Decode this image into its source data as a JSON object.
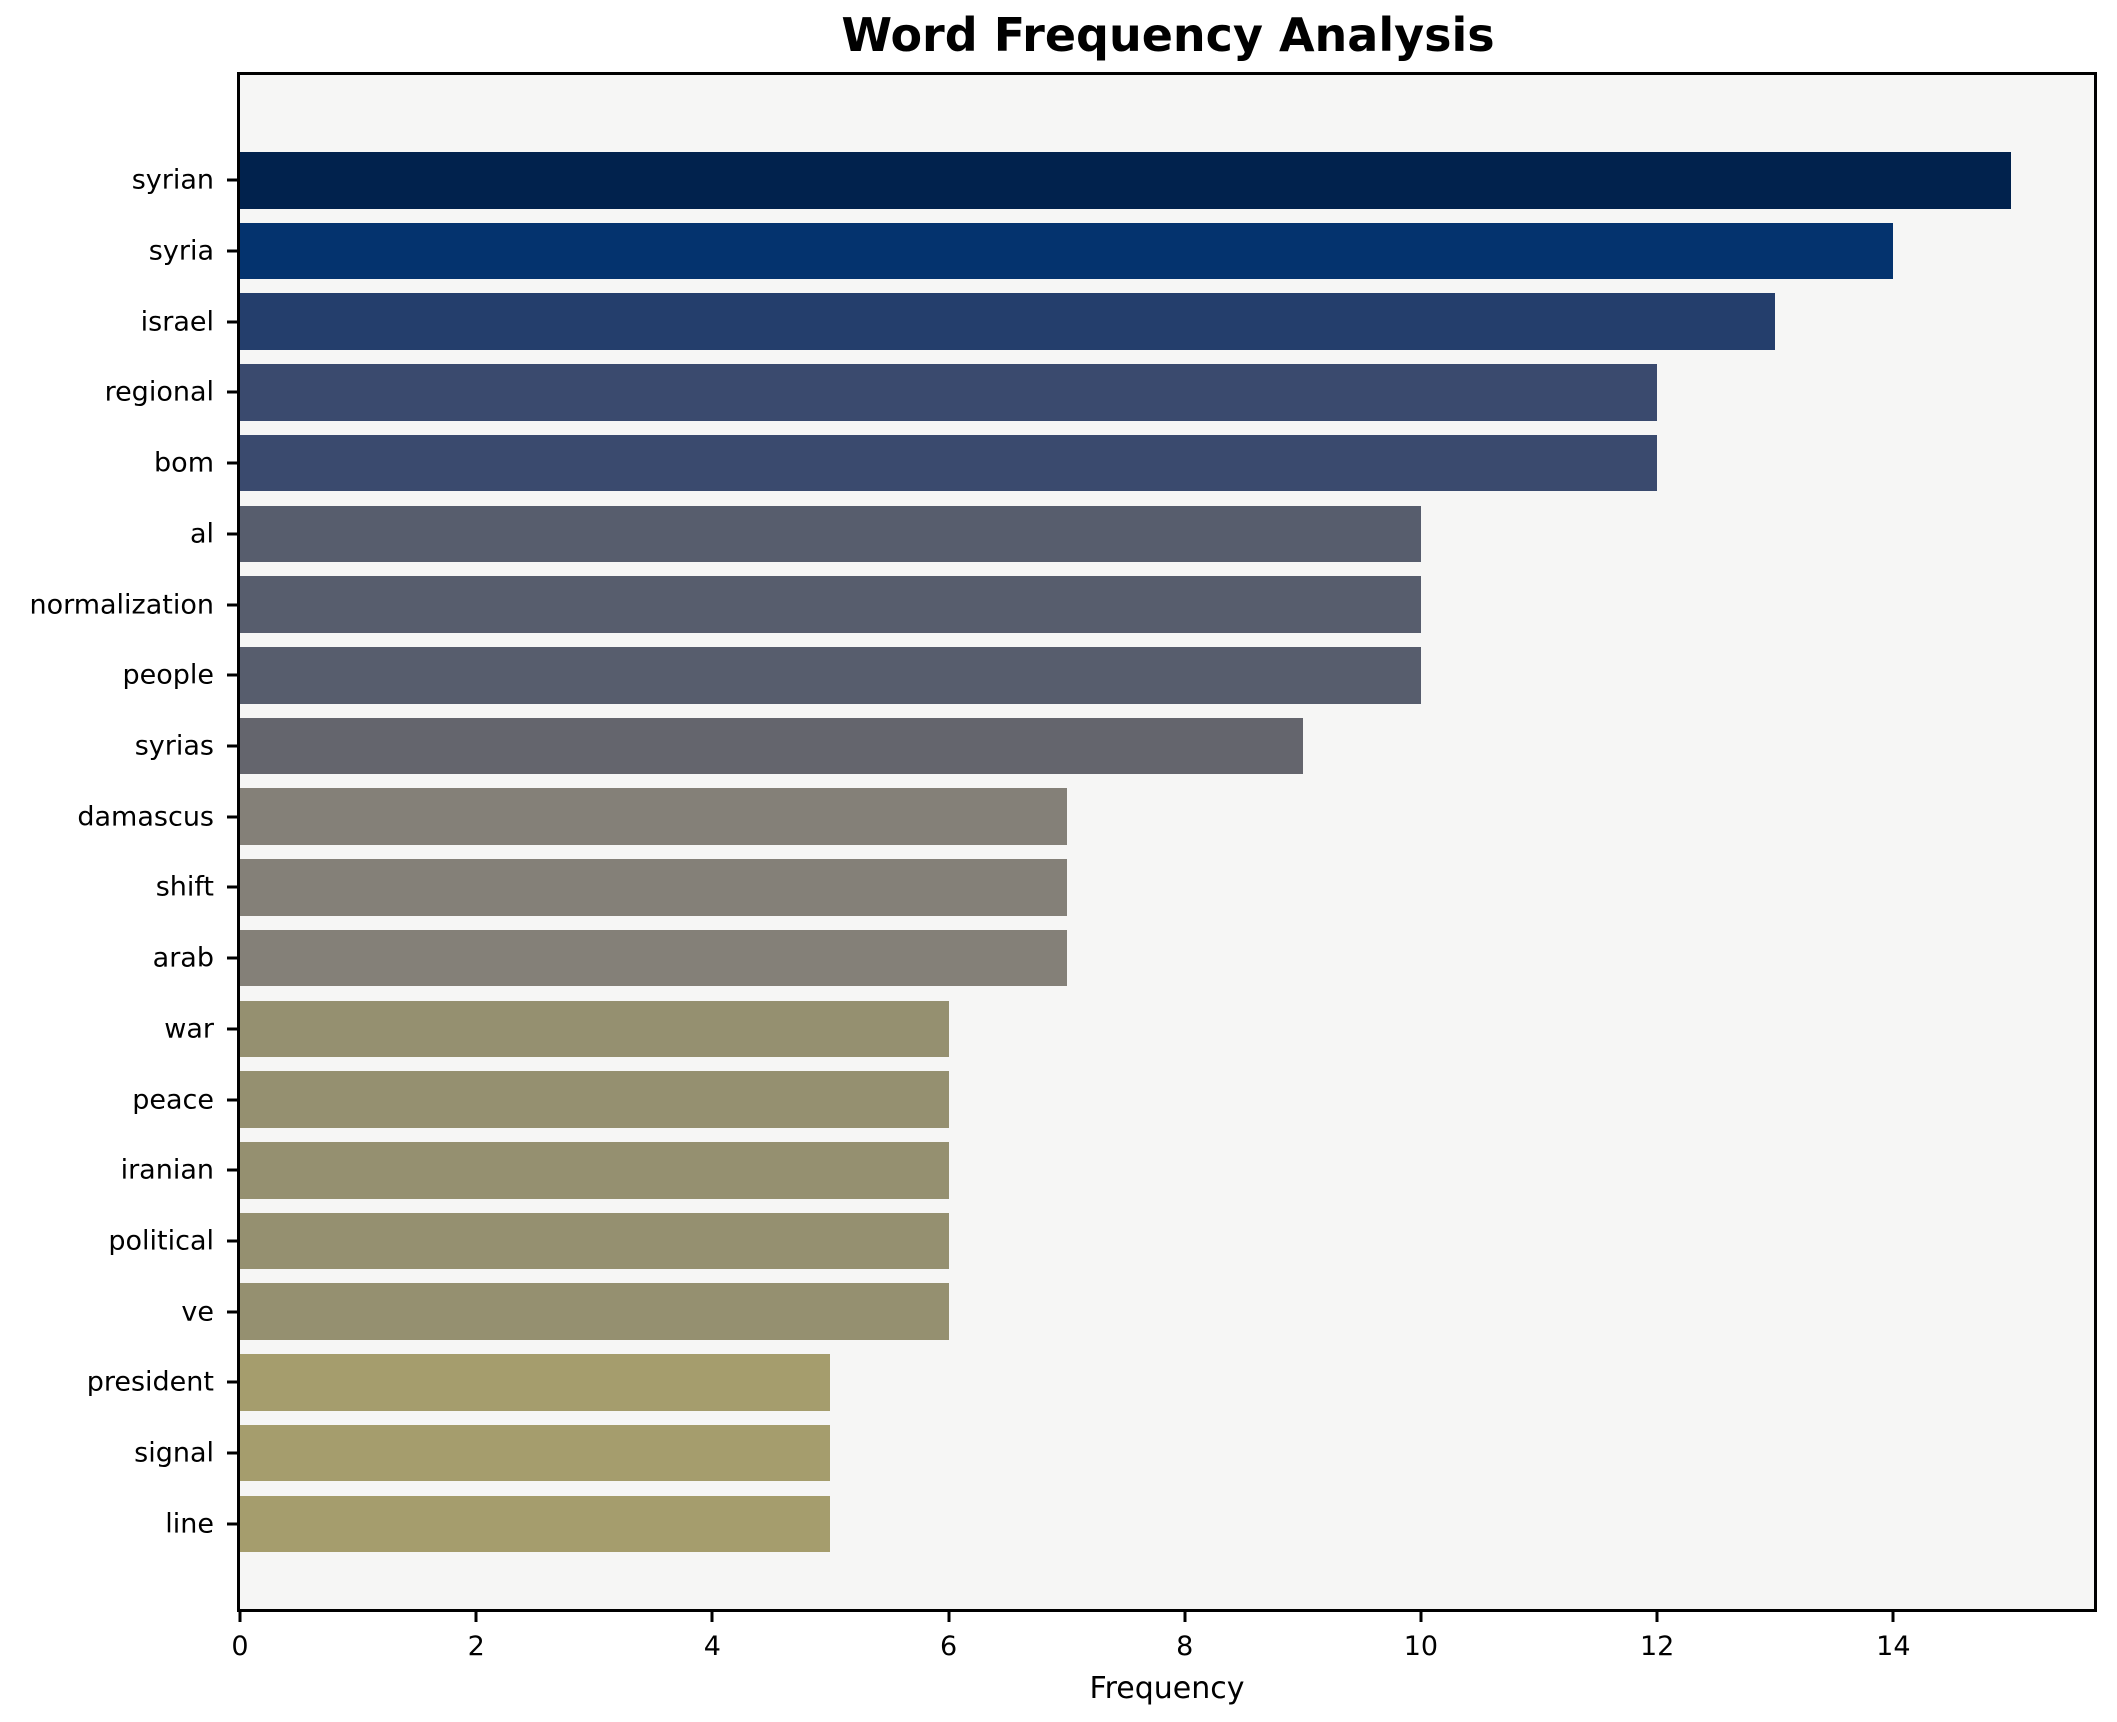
{
  "chart_data": {
    "type": "bar",
    "orientation": "horizontal",
    "title": "Word Frequency Analysis",
    "xlabel": "Frequency",
    "ylabel": "",
    "categories": [
      "syrian",
      "syria",
      "israel",
      "regional",
      "bom",
      "al",
      "normalization",
      "people",
      "syrias",
      "damascus",
      "shift",
      "arab",
      "war",
      "peace",
      "iranian",
      "political",
      "ve",
      "president",
      "signal",
      "line"
    ],
    "values": [
      15,
      14,
      13,
      12,
      12,
      10,
      10,
      10,
      9,
      7,
      7,
      7,
      6,
      6,
      6,
      6,
      6,
      5,
      5,
      5
    ],
    "bar_colors": [
      "#01224d",
      "#04336e",
      "#243e6c",
      "#3a4a6e",
      "#3a4a6e",
      "#575d6d",
      "#575d6d",
      "#575d6d",
      "#64656d",
      "#848078",
      "#848078",
      "#848078",
      "#959070",
      "#959070",
      "#959070",
      "#959070",
      "#959070",
      "#a59d6d",
      "#a59d6d",
      "#a59d6d"
    ],
    "x_ticks": [
      0,
      2,
      4,
      6,
      8,
      10,
      12,
      14
    ],
    "xlim": [
      0,
      15.75
    ],
    "grid": false,
    "legend": "none",
    "plot_background": "#f6f6f5",
    "figure_background": "#ffffff",
    "spine_color": "#000000"
  }
}
